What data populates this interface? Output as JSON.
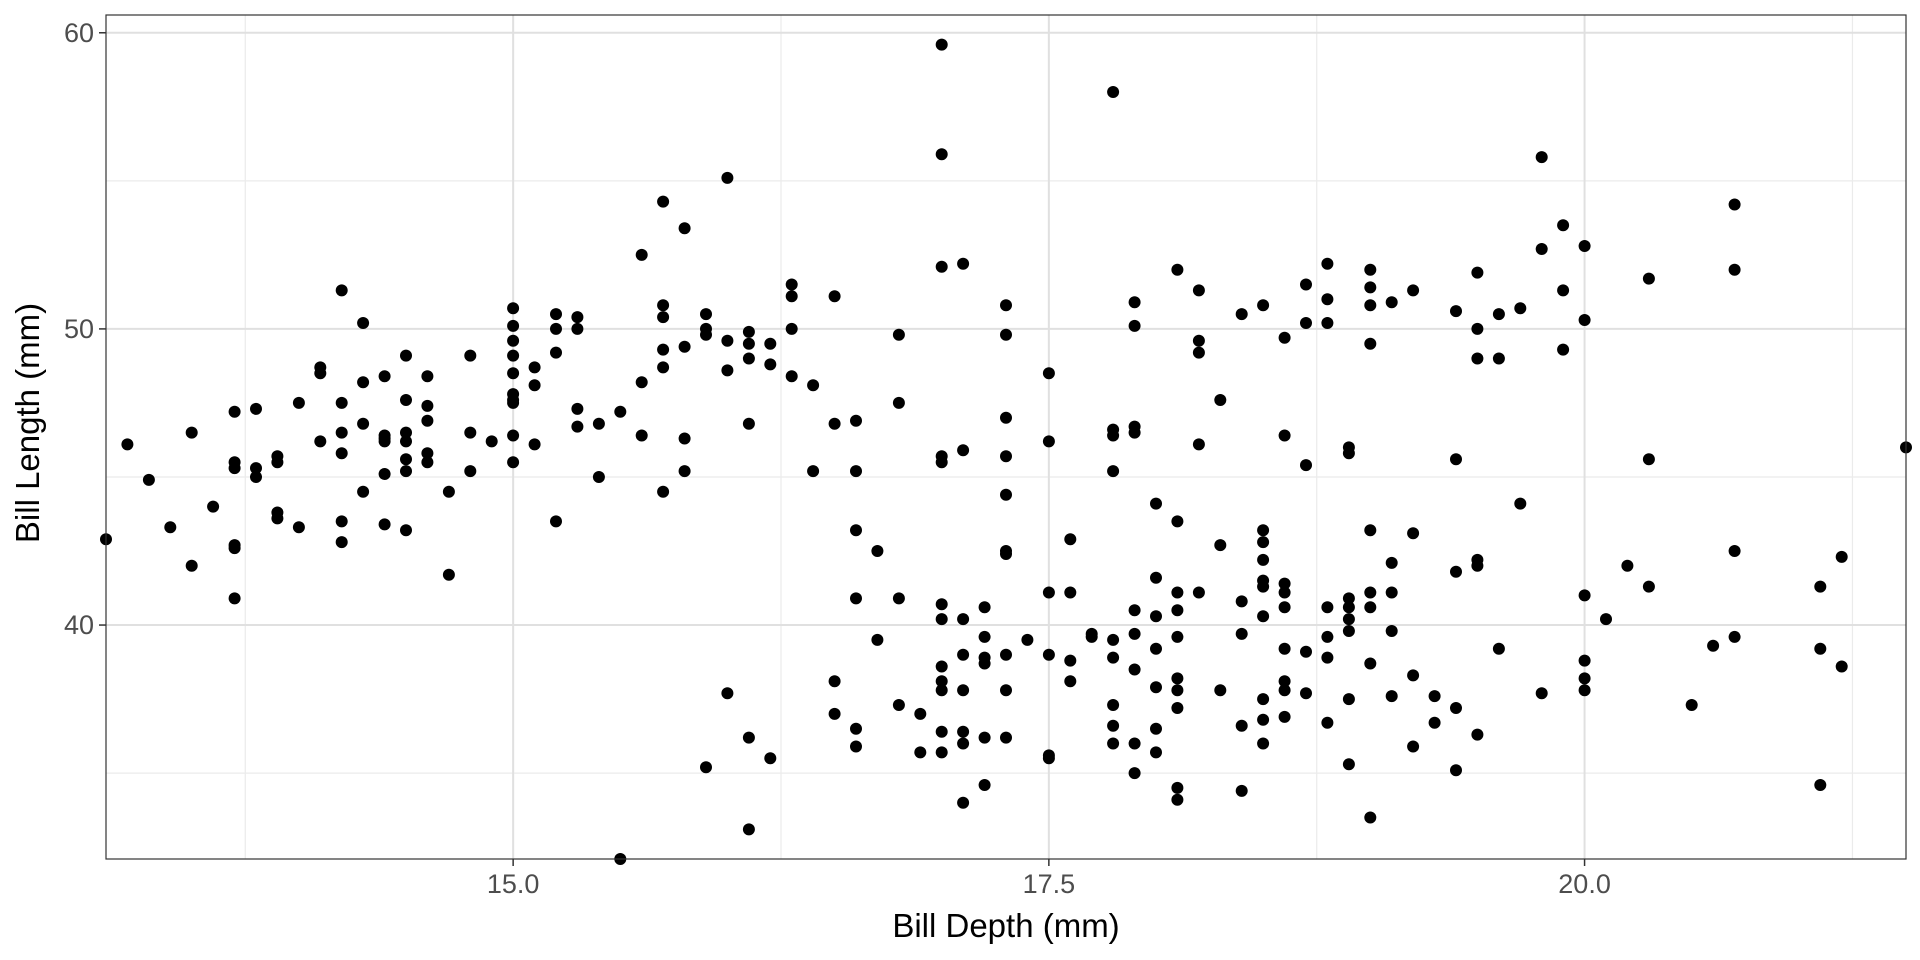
{
  "chart_data": {
    "type": "scatter",
    "xlabel": "Bill Depth (mm)",
    "ylabel": "Bill Length (mm)",
    "xlim": [
      13.1,
      21.5
    ],
    "ylim": [
      32.1,
      60.6
    ],
    "xticks": [
      15.0,
      17.5,
      20.0
    ],
    "xtick_labels": [
      "15.0",
      "17.5",
      "20.0"
    ],
    "yticks": [
      40,
      50,
      60
    ],
    "ytick_labels": [
      "40",
      "50",
      "60"
    ],
    "grid": true,
    "minor_grid": true,
    "legend": "none",
    "point_color": "#000000",
    "points": [
      [
        13.1,
        42.9
      ],
      [
        13.2,
        46.1
      ],
      [
        13.3,
        44.9
      ],
      [
        13.4,
        43.3
      ],
      [
        13.5,
        46.5
      ],
      [
        13.5,
        42.0
      ],
      [
        13.6,
        44.0
      ],
      [
        13.7,
        45.5
      ],
      [
        13.7,
        45.3
      ],
      [
        13.7,
        47.2
      ],
      [
        13.7,
        42.7
      ],
      [
        13.7,
        42.6
      ],
      [
        13.7,
        40.9
      ],
      [
        13.8,
        47.3
      ],
      [
        13.8,
        45.3
      ],
      [
        13.8,
        45.0
      ],
      [
        13.9,
        45.7
      ],
      [
        13.9,
        45.5
      ],
      [
        13.9,
        43.8
      ],
      [
        13.9,
        43.6
      ],
      [
        14.0,
        47.5
      ],
      [
        14.0,
        43.3
      ],
      [
        14.1,
        48.7
      ],
      [
        14.1,
        48.5
      ],
      [
        14.1,
        46.2
      ],
      [
        14.2,
        51.3
      ],
      [
        14.2,
        47.5
      ],
      [
        14.2,
        46.5
      ],
      [
        14.2,
        45.8
      ],
      [
        14.2,
        43.5
      ],
      [
        14.2,
        42.8
      ],
      [
        14.3,
        48.2
      ],
      [
        14.3,
        50.2
      ],
      [
        14.3,
        46.8
      ],
      [
        14.3,
        44.5
      ],
      [
        14.4,
        48.4
      ],
      [
        14.4,
        46.4
      ],
      [
        14.4,
        46.3
      ],
      [
        14.4,
        46.2
      ],
      [
        14.4,
        45.1
      ],
      [
        14.4,
        43.4
      ],
      [
        14.5,
        49.1
      ],
      [
        14.5,
        47.6
      ],
      [
        14.5,
        46.5
      ],
      [
        14.5,
        46.2
      ],
      [
        14.5,
        45.6
      ],
      [
        14.5,
        45.2
      ],
      [
        14.5,
        43.2
      ],
      [
        14.6,
        48.4
      ],
      [
        14.6,
        47.4
      ],
      [
        14.6,
        46.9
      ],
      [
        14.6,
        45.8
      ],
      [
        14.6,
        45.5
      ],
      [
        14.7,
        44.5
      ],
      [
        14.7,
        41.7
      ],
      [
        14.8,
        49.1
      ],
      [
        14.8,
        46.5
      ],
      [
        14.8,
        45.2
      ],
      [
        14.9,
        46.2
      ],
      [
        15.0,
        50.7
      ],
      [
        15.0,
        50.1
      ],
      [
        15.0,
        49.6
      ],
      [
        15.0,
        49.1
      ],
      [
        15.0,
        48.5
      ],
      [
        15.0,
        47.8
      ],
      [
        15.0,
        47.6
      ],
      [
        15.0,
        47.5
      ],
      [
        15.0,
        46.4
      ],
      [
        15.0,
        45.5
      ],
      [
        15.1,
        48.7
      ],
      [
        15.1,
        48.1
      ],
      [
        15.1,
        46.1
      ],
      [
        15.2,
        50.5
      ],
      [
        15.2,
        50.0
      ],
      [
        15.2,
        49.2
      ],
      [
        15.2,
        43.5
      ],
      [
        15.3,
        50.4
      ],
      [
        15.3,
        50.0
      ],
      [
        15.3,
        47.3
      ],
      [
        15.3,
        46.7
      ],
      [
        15.4,
        46.8
      ],
      [
        15.4,
        45.0
      ],
      [
        15.5,
        47.2
      ],
      [
        15.5,
        32.1
      ],
      [
        15.6,
        52.5
      ],
      [
        15.6,
        48.2
      ],
      [
        15.6,
        46.4
      ],
      [
        15.7,
        54.3
      ],
      [
        15.7,
        50.8
      ],
      [
        15.7,
        50.4
      ],
      [
        15.7,
        49.3
      ],
      [
        15.7,
        48.7
      ],
      [
        15.7,
        44.5
      ],
      [
        15.8,
        53.4
      ],
      [
        15.8,
        49.4
      ],
      [
        15.8,
        46.3
      ],
      [
        15.8,
        45.2
      ],
      [
        15.9,
        50.5
      ],
      [
        15.9,
        50.0
      ],
      [
        15.9,
        49.8
      ],
      [
        15.9,
        35.2
      ],
      [
        16.0,
        55.1
      ],
      [
        16.0,
        49.6
      ],
      [
        16.0,
        48.6
      ],
      [
        16.0,
        37.7
      ],
      [
        16.1,
        49.9
      ],
      [
        16.1,
        49.5
      ],
      [
        16.1,
        49.0
      ],
      [
        16.1,
        46.8
      ],
      [
        16.1,
        36.2
      ],
      [
        16.1,
        33.1
      ],
      [
        16.2,
        49.5
      ],
      [
        16.2,
        48.8
      ],
      [
        16.2,
        35.5
      ],
      [
        16.3,
        51.5
      ],
      [
        16.3,
        51.1
      ],
      [
        16.3,
        50.0
      ],
      [
        16.3,
        48.4
      ],
      [
        16.4,
        48.1
      ],
      [
        16.4,
        45.2
      ],
      [
        16.5,
        51.1
      ],
      [
        16.5,
        46.8
      ],
      [
        16.5,
        38.1
      ],
      [
        16.5,
        37.0
      ],
      [
        16.6,
        46.9
      ],
      [
        16.6,
        45.2
      ],
      [
        16.6,
        43.2
      ],
      [
        16.6,
        40.9
      ],
      [
        16.6,
        36.5
      ],
      [
        16.6,
        35.9
      ],
      [
        16.7,
        42.5
      ],
      [
        16.7,
        39.5
      ],
      [
        16.8,
        49.8
      ],
      [
        16.8,
        47.5
      ],
      [
        16.8,
        40.9
      ],
      [
        16.8,
        37.3
      ],
      [
        16.9,
        37.0
      ],
      [
        16.9,
        35.7
      ],
      [
        17.0,
        59.6
      ],
      [
        17.0,
        55.9
      ],
      [
        17.0,
        52.1
      ],
      [
        17.0,
        45.7
      ],
      [
        17.0,
        45.5
      ],
      [
        17.0,
        40.7
      ],
      [
        17.0,
        40.2
      ],
      [
        17.0,
        38.6
      ],
      [
        17.0,
        38.1
      ],
      [
        17.0,
        37.8
      ],
      [
        17.0,
        36.4
      ],
      [
        17.0,
        35.7
      ],
      [
        17.1,
        52.2
      ],
      [
        17.1,
        45.9
      ],
      [
        17.1,
        40.2
      ],
      [
        17.1,
        39.0
      ],
      [
        17.1,
        37.8
      ],
      [
        17.1,
        36.4
      ],
      [
        17.1,
        36.0
      ],
      [
        17.1,
        34.0
      ],
      [
        17.2,
        40.6
      ],
      [
        17.2,
        39.6
      ],
      [
        17.2,
        38.9
      ],
      [
        17.2,
        38.7
      ],
      [
        17.2,
        36.2
      ],
      [
        17.2,
        34.6
      ],
      [
        17.3,
        50.8
      ],
      [
        17.3,
        49.8
      ],
      [
        17.3,
        47.0
      ],
      [
        17.3,
        45.7
      ],
      [
        17.3,
        44.4
      ],
      [
        17.3,
        42.5
      ],
      [
        17.3,
        42.4
      ],
      [
        17.3,
        39.0
      ],
      [
        17.3,
        37.8
      ],
      [
        17.3,
        36.2
      ],
      [
        17.4,
        39.5
      ],
      [
        17.5,
        48.5
      ],
      [
        17.5,
        46.2
      ],
      [
        17.5,
        41.1
      ],
      [
        17.5,
        39.0
      ],
      [
        17.5,
        35.6
      ],
      [
        17.5,
        35.5
      ],
      [
        17.6,
        42.9
      ],
      [
        17.6,
        41.1
      ],
      [
        17.6,
        38.8
      ],
      [
        17.6,
        38.1
      ],
      [
        17.7,
        39.7
      ],
      [
        17.7,
        39.6
      ],
      [
        17.8,
        58.0
      ],
      [
        17.8,
        46.6
      ],
      [
        17.8,
        46.4
      ],
      [
        17.8,
        45.2
      ],
      [
        17.8,
        39.5
      ],
      [
        17.8,
        38.9
      ],
      [
        17.8,
        37.3
      ],
      [
        17.8,
        36.6
      ],
      [
        17.8,
        36.0
      ],
      [
        17.9,
        50.9
      ],
      [
        17.9,
        50.1
      ],
      [
        17.9,
        46.7
      ],
      [
        17.9,
        46.5
      ],
      [
        17.9,
        40.5
      ],
      [
        17.9,
        39.7
      ],
      [
        17.9,
        38.5
      ],
      [
        17.9,
        36.0
      ],
      [
        17.9,
        35.0
      ],
      [
        18.0,
        44.1
      ],
      [
        18.0,
        41.6
      ],
      [
        18.0,
        40.3
      ],
      [
        18.0,
        39.2
      ],
      [
        18.0,
        37.9
      ],
      [
        18.0,
        36.5
      ],
      [
        18.0,
        35.7
      ],
      [
        18.1,
        52.0
      ],
      [
        18.1,
        43.5
      ],
      [
        18.1,
        41.1
      ],
      [
        18.1,
        40.5
      ],
      [
        18.1,
        39.6
      ],
      [
        18.1,
        38.2
      ],
      [
        18.1,
        37.8
      ],
      [
        18.1,
        37.2
      ],
      [
        18.1,
        34.5
      ],
      [
        18.1,
        34.1
      ],
      [
        18.2,
        51.3
      ],
      [
        18.2,
        49.6
      ],
      [
        18.2,
        49.2
      ],
      [
        18.2,
        46.1
      ],
      [
        18.2,
        41.1
      ],
      [
        18.3,
        47.6
      ],
      [
        18.3,
        42.7
      ],
      [
        18.3,
        37.8
      ],
      [
        18.4,
        50.5
      ],
      [
        18.4,
        40.8
      ],
      [
        18.4,
        39.7
      ],
      [
        18.4,
        36.6
      ],
      [
        18.4,
        34.4
      ],
      [
        18.5,
        50.8
      ],
      [
        18.5,
        43.2
      ],
      [
        18.5,
        42.8
      ],
      [
        18.5,
        42.2
      ],
      [
        18.5,
        41.5
      ],
      [
        18.5,
        41.3
      ],
      [
        18.5,
        40.3
      ],
      [
        18.5,
        37.5
      ],
      [
        18.5,
        36.8
      ],
      [
        18.5,
        36.0
      ],
      [
        18.6,
        49.7
      ],
      [
        18.6,
        46.4
      ],
      [
        18.6,
        41.4
      ],
      [
        18.6,
        41.1
      ],
      [
        18.6,
        40.6
      ],
      [
        18.6,
        39.2
      ],
      [
        18.6,
        38.1
      ],
      [
        18.6,
        37.8
      ],
      [
        18.6,
        36.9
      ],
      [
        18.7,
        51.5
      ],
      [
        18.7,
        50.2
      ],
      [
        18.7,
        45.4
      ],
      [
        18.7,
        39.1
      ],
      [
        18.7,
        37.7
      ],
      [
        18.8,
        52.2
      ],
      [
        18.8,
        51.0
      ],
      [
        18.8,
        50.2
      ],
      [
        18.8,
        40.6
      ],
      [
        18.8,
        39.6
      ],
      [
        18.8,
        38.9
      ],
      [
        18.8,
        36.7
      ],
      [
        18.9,
        46.0
      ],
      [
        18.9,
        45.8
      ],
      [
        18.9,
        40.9
      ],
      [
        18.9,
        40.6
      ],
      [
        18.9,
        40.2
      ],
      [
        18.9,
        39.8
      ],
      [
        18.9,
        37.5
      ],
      [
        18.9,
        35.3
      ],
      [
        19.0,
        52.0
      ],
      [
        19.0,
        51.4
      ],
      [
        19.0,
        50.8
      ],
      [
        19.0,
        49.5
      ],
      [
        19.0,
        43.2
      ],
      [
        19.0,
        41.1
      ],
      [
        19.0,
        40.6
      ],
      [
        19.0,
        38.7
      ],
      [
        19.0,
        33.5
      ],
      [
        19.1,
        50.9
      ],
      [
        19.1,
        42.1
      ],
      [
        19.1,
        41.1
      ],
      [
        19.1,
        39.8
      ],
      [
        19.1,
        37.6
      ],
      [
        19.2,
        51.3
      ],
      [
        19.2,
        43.1
      ],
      [
        19.2,
        38.3
      ],
      [
        19.2,
        35.9
      ],
      [
        19.3,
        37.6
      ],
      [
        19.3,
        36.7
      ],
      [
        19.4,
        50.6
      ],
      [
        19.4,
        45.6
      ],
      [
        19.4,
        41.8
      ],
      [
        19.4,
        37.2
      ],
      [
        19.4,
        35.1
      ],
      [
        19.5,
        51.9
      ],
      [
        19.5,
        50.0
      ],
      [
        19.5,
        49.0
      ],
      [
        19.5,
        42.2
      ],
      [
        19.5,
        42.0
      ],
      [
        19.5,
        36.3
      ],
      [
        19.6,
        50.5
      ],
      [
        19.6,
        49.0
      ],
      [
        19.6,
        39.2
      ],
      [
        19.7,
        50.7
      ],
      [
        19.7,
        44.1
      ],
      [
        19.8,
        55.8
      ],
      [
        19.8,
        52.7
      ],
      [
        19.8,
        37.7
      ],
      [
        19.9,
        53.5
      ],
      [
        19.9,
        51.3
      ],
      [
        19.9,
        49.3
      ],
      [
        20.0,
        52.8
      ],
      [
        20.0,
        50.3
      ],
      [
        20.0,
        41.0
      ],
      [
        20.0,
        38.8
      ],
      [
        20.0,
        38.2
      ],
      [
        20.0,
        37.8
      ],
      [
        20.1,
        40.2
      ],
      [
        20.2,
        42.0
      ],
      [
        20.3,
        51.7
      ],
      [
        20.3,
        45.6
      ],
      [
        20.3,
        41.3
      ],
      [
        20.5,
        37.3
      ],
      [
        20.6,
        39.3
      ],
      [
        20.7,
        54.2
      ],
      [
        20.7,
        52.0
      ],
      [
        20.7,
        42.5
      ],
      [
        20.7,
        39.6
      ],
      [
        21.1,
        41.3
      ],
      [
        21.1,
        39.2
      ],
      [
        21.1,
        34.6
      ],
      [
        21.2,
        42.3
      ],
      [
        21.2,
        38.6
      ],
      [
        21.5,
        46.0
      ]
    ]
  }
}
